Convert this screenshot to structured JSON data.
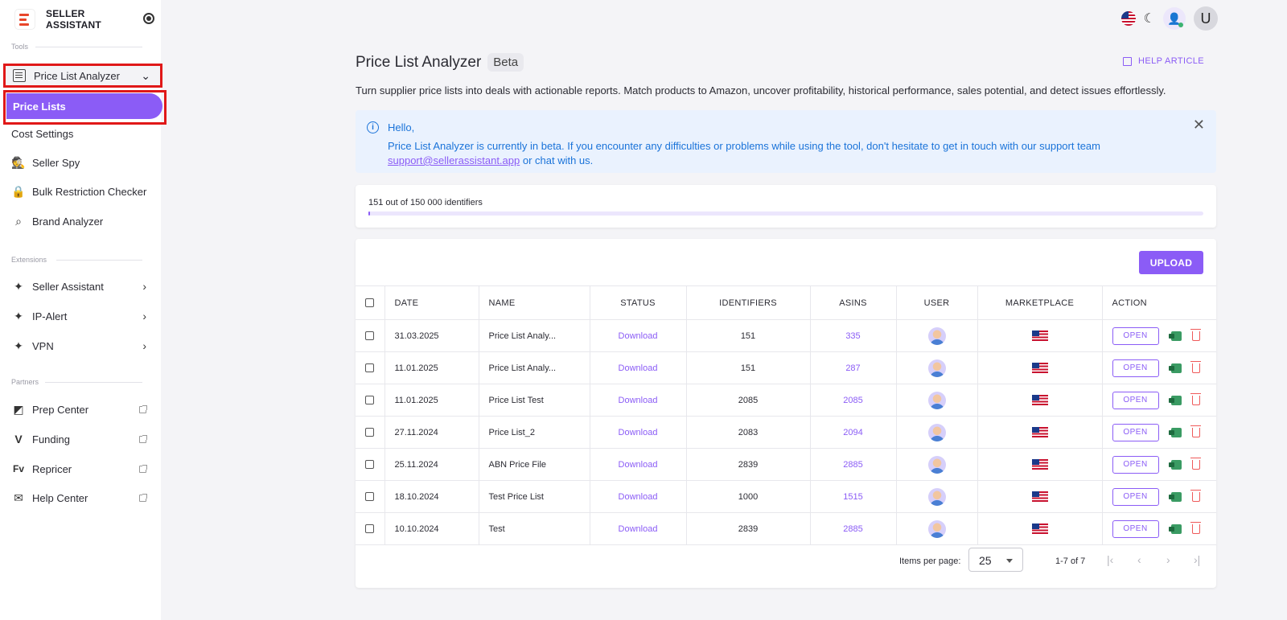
{
  "brand": {
    "line1": "SELLER",
    "line2": "ASSISTANT"
  },
  "sidebar": {
    "tools_label": "Tools",
    "price_list_analyzer": "Price List Analyzer",
    "price_lists": "Price Lists",
    "cost_settings": "Cost Settings",
    "seller_spy": "Seller Spy",
    "bulk_restriction_checker": "Bulk Restriction Checker",
    "brand_analyzer": "Brand Analyzer",
    "extensions_label": "Extensions",
    "seller_assistant": "Seller Assistant",
    "ip_alert": "IP-Alert",
    "vpn": "VPN",
    "partners_label": "Partners",
    "prep_center": "Prep Center",
    "funding": "Funding",
    "repricer": "Repricer",
    "help_center": "Help Center"
  },
  "header": {
    "avatar_letter": "U"
  },
  "page": {
    "title": "Price List Analyzer",
    "badge": "Beta",
    "help_article": "HELP ARTICLE",
    "subtitle": "Turn supplier price lists into deals with actionable reports. Match products to Amazon, uncover profitability, historical performance, sales potential, and detect issues effortlessly."
  },
  "alert": {
    "hello": "Hello,",
    "message": "Price List Analyzer is currently in beta. If you encounter any difficulties or problems while using the tool, don't hesitate to get in touch with our support team",
    "email": "support@sellerassistant.app",
    "suffix": " or chat with us."
  },
  "quota": {
    "text": "151 out of 150 000 identifiers",
    "used_fraction": 0.001
  },
  "table": {
    "upload_label": "UPLOAD",
    "headers": {
      "date": "DATE",
      "name": "NAME",
      "status": "STATUS",
      "identifiers": "IDENTIFIERS",
      "asins": "ASINS",
      "user": "USER",
      "marketplace": "MARKETPLACE",
      "action": "ACTION"
    },
    "open_label": "OPEN",
    "rows": [
      {
        "date": "31.03.2025",
        "name": "Price List Analy...",
        "status": "Download",
        "identifiers": "151",
        "asins": "335"
      },
      {
        "date": "11.01.2025",
        "name": "Price List Analy...",
        "status": "Download",
        "identifiers": "151",
        "asins": "287"
      },
      {
        "date": "11.01.2025",
        "name": "Price List Test",
        "status": "Download",
        "identifiers": "2085",
        "asins": "2085"
      },
      {
        "date": "27.11.2024",
        "name": "Price List_2",
        "status": "Download",
        "identifiers": "2083",
        "asins": "2094"
      },
      {
        "date": "25.11.2024",
        "name": "ABN Price File",
        "status": "Download",
        "identifiers": "2839",
        "asins": "2885"
      },
      {
        "date": "18.10.2024",
        "name": "Test Price List",
        "status": "Download",
        "identifiers": "1000",
        "asins": "1515"
      },
      {
        "date": "10.10.2024",
        "name": "Test",
        "status": "Download",
        "identifiers": "2839",
        "asins": "2885"
      }
    ]
  },
  "pager": {
    "items_per_page_label": "Items per page:",
    "items_per_page": "25",
    "range": "1-7 of 7"
  },
  "colors": {
    "accent": "#8b5cf6",
    "highlight_border": "#e01818",
    "alert_text": "#1a73d9",
    "alert_bg": "#eaf2fe"
  }
}
